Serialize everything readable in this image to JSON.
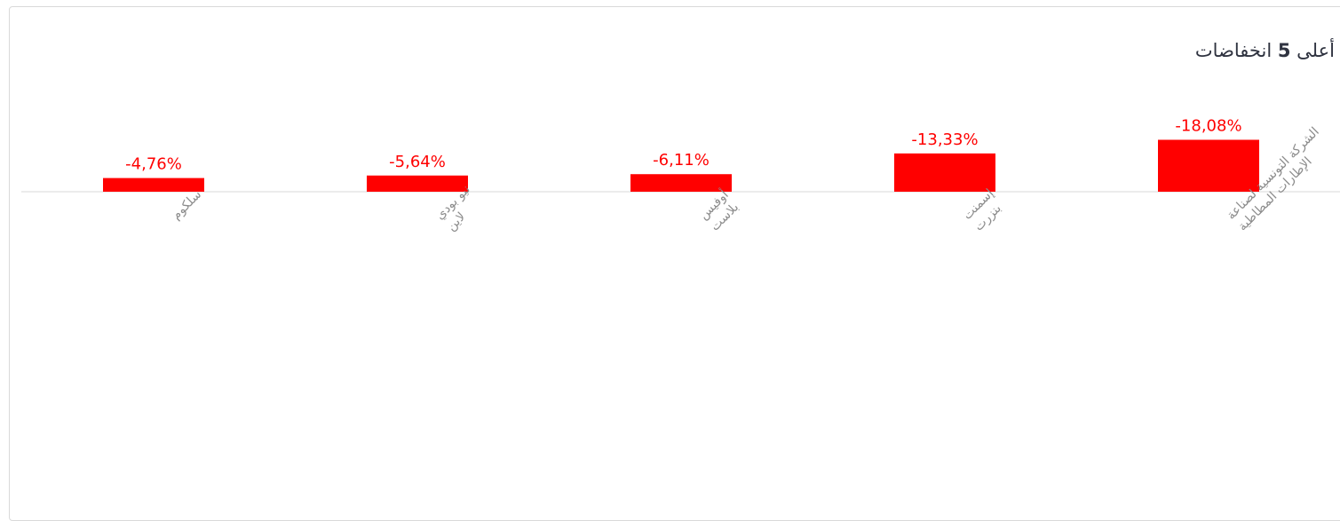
{
  "header": {
    "title_prefix": "أعلى",
    "title_number": "5",
    "title_suffix": "انخفاضات"
  },
  "colors": {
    "bar": "#ff0000",
    "value_label": "#ff0000",
    "axis": "#d9d9d9",
    "category_label": "#8c8c8c",
    "title": "#2f3340"
  },
  "chart_data": {
    "type": "bar",
    "title": "أعلى 5 انخفاضات",
    "categories": [
      "سلكوم",
      "نيو بودي لاين",
      "أوفيس بلاست",
      "إسمنت بنزرت",
      "الشركة التونسية لصناعة الإطارات المطاطية"
    ],
    "category_lines": [
      [
        "سلكوم"
      ],
      [
        "نيو بودي",
        "لاين"
      ],
      [
        "أوفيس",
        "بلاست"
      ],
      [
        "إسمنت",
        "بنزرت"
      ],
      [
        "الشركة التونسية لصناعة",
        "الإطارات المطاطية"
      ]
    ],
    "values": [
      -4.76,
      -5.64,
      -6.11,
      -13.33,
      -18.08
    ],
    "value_labels": [
      "-4,76%",
      "-5,64%",
      "-6,11%",
      "-13,33%",
      "-18,08%"
    ],
    "ylabel": "",
    "xlabel": "",
    "legend": "none",
    "grid": false
  }
}
